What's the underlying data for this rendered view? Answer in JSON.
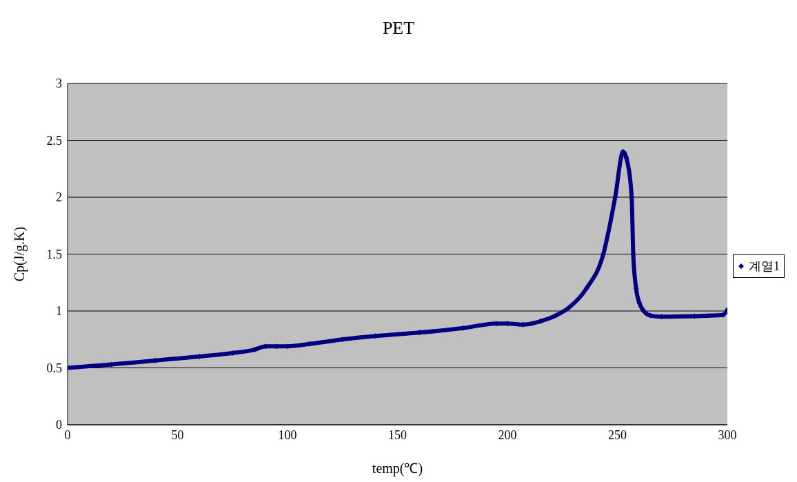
{
  "chart_data": {
    "type": "line",
    "title": "PET",
    "xlabel": "temp(℃)",
    "ylabel": "Cp(J/g.K)",
    "xlim": [
      0,
      300
    ],
    "xticks": [
      0,
      50,
      100,
      150,
      200,
      250,
      300
    ],
    "ylim": [
      0,
      3
    ],
    "yticks": [
      0,
      0.5,
      1,
      1.5,
      2,
      2.5,
      3
    ],
    "grid": "y",
    "legend": "right",
    "marker": "diamond",
    "line_style": "solid",
    "series": [
      {
        "name": "계열1",
        "color": "#000080",
        "x": [
          0,
          20,
          40,
          60,
          75,
          85,
          90,
          95,
          100,
          110,
          125,
          140,
          160,
          180,
          195,
          200,
          207,
          215,
          222,
          228,
          236,
          243.6,
          249,
          252.6,
          254,
          256.5,
          257.2,
          258.5,
          260,
          262,
          265,
          270,
          285,
          298,
          300
        ],
        "values": [
          0.5,
          0.53,
          0.565,
          0.6,
          0.63,
          0.66,
          0.69,
          0.69,
          0.69,
          0.71,
          0.75,
          0.78,
          0.81,
          0.85,
          0.89,
          0.89,
          0.88,
          0.91,
          0.96,
          1.03,
          1.2,
          1.5,
          2.0,
          2.4,
          2.35,
          2.0,
          1.5,
          1.2,
          1.07,
          1.0,
          0.96,
          0.95,
          0.955,
          0.965,
          1.01
        ]
      }
    ]
  }
}
